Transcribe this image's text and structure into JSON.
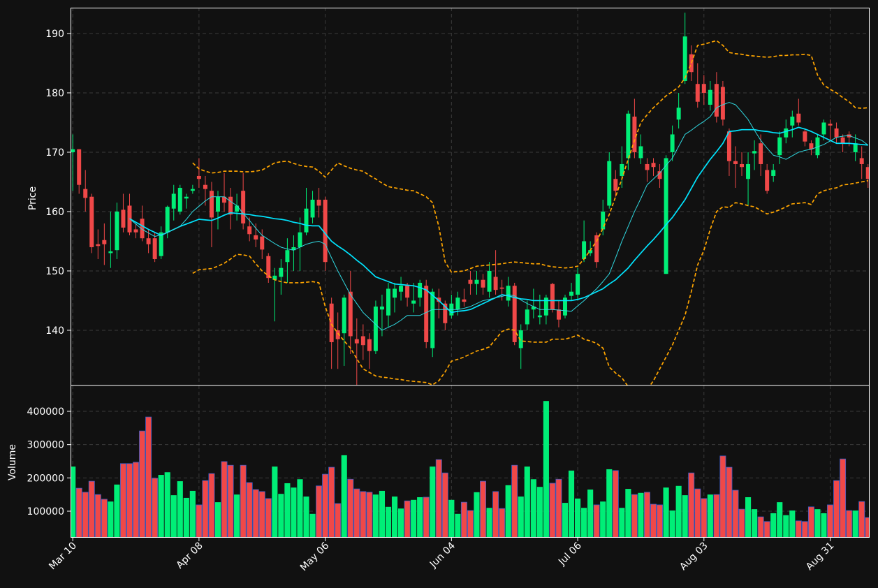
{
  "chart_data": {
    "type": "candlestick",
    "ylabel": "Price",
    "xlim": [
      -0.35,
      126.25
    ],
    "xticks": [
      {
        "value": 0,
        "label": "Mar 10"
      },
      {
        "value": 20,
        "label": "Apr 08"
      },
      {
        "value": 40,
        "label": "May 06"
      },
      {
        "value": 60,
        "label": "Jun 04"
      },
      {
        "value": 80,
        "label": "Jul 06"
      },
      {
        "value": 100,
        "label": "Aug 03"
      },
      {
        "value": 120,
        "label": "Aug 31"
      }
    ],
    "ylim": [
      130.7,
      194.35
    ],
    "yticks": [
      140,
      150,
      160,
      170,
      180,
      190
    ],
    "grid": true,
    "up_color": "#00ee77",
    "down_color": "#f04848",
    "open": [
      170,
      170.5,
      163.8,
      162.5,
      154.5,
      155.2,
      153,
      153.5,
      160.3,
      161,
      157,
      158.8,
      155.5,
      155.5,
      152.5,
      156.5,
      160.5,
      160,
      162.2,
      163.5,
      166,
      164.5,
      163.5,
      160,
      162.5,
      162.5,
      160,
      163.5,
      157.5,
      156,
      155.8,
      152.5,
      148.5,
      149,
      151.5,
      153.5,
      154,
      156.5,
      159,
      162,
      162,
      144.5,
      140,
      139.5,
      146.5,
      138.5,
      139,
      138.5,
      136.5,
      143.5,
      142.5,
      145.5,
      146.5,
      147.5,
      144.5,
      145.5,
      147.5,
      137,
      145.5,
      144.5,
      142.5,
      143.5,
      145.2,
      148.5,
      147.8,
      148.5,
      146.5,
      149,
      147.2,
      145,
      147.5,
      137,
      141,
      143.5,
      142.2,
      142.5,
      147.8,
      143.5,
      142.5,
      145.8,
      146,
      152,
      153,
      156,
      157,
      161,
      165.5,
      166,
      169,
      176,
      169,
      168,
      168.2,
      166.8,
      149.5,
      170,
      175.5,
      182,
      186.5,
      181.5,
      181.5,
      178,
      181.5,
      181,
      173.5,
      168.5,
      168,
      165.5,
      169.8,
      171.5,
      167,
      166,
      169.5,
      172.5,
      174.5,
      176.5,
      173.5,
      171.5,
      169.5,
      173,
      174.8,
      174,
      172.5,
      173,
      170,
      169,
      167.5
    ],
    "high": [
      173,
      170.5,
      167,
      163,
      157,
      158,
      160,
      161.5,
      163,
      163,
      158,
      161,
      157,
      156.5,
      157.5,
      161,
      164.5,
      164.5,
      163,
      164.5,
      169,
      166,
      165,
      163.5,
      166.5,
      164,
      163,
      166.5,
      159,
      158,
      157,
      153,
      150.5,
      152,
      155.5,
      156,
      159,
      164,
      163.5,
      164,
      162.5,
      145.5,
      143,
      146,
      150,
      142,
      141,
      139.5,
      145,
      146,
      148,
      148,
      149,
      148,
      148,
      148.5,
      148.5,
      147,
      147,
      145,
      146,
      146.5,
      147,
      150,
      150,
      149.5,
      151.5,
      153.5,
      148.5,
      149,
      148,
      141,
      145,
      147,
      146,
      146,
      148,
      145,
      146,
      148,
      150.5,
      158.5,
      155,
      156.5,
      162,
      170,
      167,
      171,
      177,
      179,
      173,
      169,
      169,
      168,
      169.5,
      174.5,
      180,
      193.5,
      188,
      185,
      183,
      182,
      183.5,
      182,
      174,
      171,
      170,
      170,
      172,
      173,
      168,
      168,
      173.5,
      175.5,
      177,
      179,
      174,
      172,
      173,
      175.5,
      175.5,
      175,
      173,
      173.5,
      173,
      171,
      168
    ],
    "low": [
      163.5,
      163,
      160,
      153,
      152,
      151,
      150.5,
      152,
      156.5,
      156,
      155.5,
      155,
      153,
      151.5,
      152,
      155.5,
      158.5,
      159.5,
      160.5,
      163,
      164,
      161,
      154,
      157,
      160,
      157,
      158.5,
      157,
      155,
      154,
      152,
      148,
      141.5,
      146,
      148,
      150,
      150,
      156,
      158,
      159,
      150,
      133.5,
      133.5,
      134,
      136,
      130.8,
      135,
      133.5,
      136,
      139,
      140.5,
      143,
      145,
      144,
      143,
      144,
      137,
      135.5,
      142,
      140,
      142,
      142.5,
      144,
      146,
      146,
      146,
      145.5,
      146,
      145,
      144,
      137.5,
      133.5,
      140,
      142,
      141,
      141,
      143,
      140.5,
      142,
      145,
      145,
      151.5,
      152.5,
      150.5,
      156,
      160.5,
      162.5,
      164,
      167,
      169,
      168,
      165,
      166,
      164,
      149.5,
      168.5,
      174,
      181.5,
      182,
      177.5,
      178,
      177,
      175,
      174.5,
      166,
      164,
      166,
      161,
      167,
      166,
      163,
      165,
      168,
      171.5,
      172.5,
      174.5,
      171,
      169.5,
      169,
      172,
      172,
      171.5,
      170,
      171,
      168.5,
      165.5,
      164
    ],
    "close": [
      170.5,
      164.5,
      162.3,
      154,
      154.2,
      154.5,
      153.3,
      160,
      157.3,
      156.5,
      156.5,
      155.5,
      154.5,
      152,
      156.5,
      160.8,
      163,
      164,
      162.5,
      163.8,
      165.5,
      163.8,
      159,
      162.5,
      161.5,
      159.5,
      161,
      158,
      156.2,
      155.3,
      153.6,
      148.8,
      149.2,
      150.5,
      153.5,
      154,
      156.5,
      160.5,
      162,
      161,
      151.5,
      138,
      138.5,
      145.5,
      139,
      137.8,
      137.5,
      136.5,
      144,
      144,
      147,
      147,
      147.5,
      145.5,
      145,
      148,
      138,
      146.5,
      144.8,
      141.2,
      144.5,
      145.5,
      144.8,
      147.8,
      148.5,
      147.2,
      150,
      146.8,
      147,
      147.5,
      138,
      140,
      143.5,
      144,
      142.5,
      145.5,
      143.5,
      141.8,
      145.5,
      146.5,
      149.5,
      155,
      153.5,
      151.5,
      160,
      168.5,
      163.5,
      168,
      176.5,
      170,
      171,
      167,
      167.5,
      165.5,
      169,
      173,
      177.5,
      189.5,
      183.5,
      178.5,
      180,
      180.5,
      176,
      175.5,
      168.5,
      168,
      167.5,
      168,
      170.2,
      168,
      163.5,
      167,
      172.5,
      174,
      176,
      175,
      171.8,
      170.5,
      172.5,
      175,
      174.5,
      172.5,
      171.5,
      172.5,
      171.5,
      168,
      165.5
    ],
    "series": [
      {
        "color": "#00e5ff",
        "style": "solid",
        "values": [
          null,
          null,
          null,
          null,
          null,
          null,
          null,
          null,
          null,
          158.8,
          158.2,
          157.6,
          157,
          156.5,
          156,
          156.5,
          157,
          157.5,
          157.9,
          158.3,
          158.7,
          158.6,
          158.5,
          158.9,
          159.4,
          159.8,
          159.7,
          159.6,
          159.5,
          159.3,
          159.2,
          159,
          158.8,
          158.7,
          158.5,
          158.2,
          158,
          157.7,
          157.6,
          157.6,
          156.3,
          155,
          154.2,
          153.5,
          152.7,
          151.8,
          151,
          150,
          149,
          148.6,
          148.2,
          147.8,
          147.7,
          147.6,
          147.5,
          147.2,
          146.8,
          145.9,
          145,
          144,
          143,
          143.2,
          143.3,
          143.5,
          144,
          144.5,
          145,
          145.5,
          146,
          145.8,
          145.5,
          145.3,
          145.2,
          145,
          145,
          145,
          145,
          145,
          145,
          145,
          145.2,
          145.5,
          146,
          146.5,
          147,
          147.8,
          148.5,
          149.5,
          150.5,
          151.8,
          153,
          154.2,
          155.3,
          156.5,
          157.8,
          159,
          160.5,
          162,
          163.9,
          165.8,
          167.3,
          168.8,
          170.1,
          171.5,
          173.5,
          173.6,
          173.8,
          173.8,
          173.8,
          173.6,
          173.5,
          173.3,
          173.2,
          173.5,
          173.8,
          174.2,
          173.9,
          173.5,
          173,
          172.5,
          172,
          171.5,
          171.5,
          171.5,
          171.4,
          171.3,
          171.2
        ]
      },
      {
        "color": "#30d8e0",
        "style": "thin",
        "values": [
          null,
          null,
          null,
          null,
          null,
          null,
          null,
          null,
          null,
          158.8,
          157.9,
          157,
          156.4,
          155.8,
          156.1,
          156.5,
          157,
          157.5,
          158.7,
          160,
          160.9,
          161.8,
          162.5,
          162.5,
          162.5,
          161.7,
          161,
          159.7,
          158.5,
          157.2,
          156,
          155.3,
          154.6,
          154,
          153.7,
          153.5,
          154,
          154.5,
          154.8,
          155,
          154.5,
          152.2,
          150,
          148,
          146,
          144.5,
          143,
          142,
          141,
          140,
          140.5,
          141,
          141.7,
          142.5,
          142.5,
          142.5,
          143,
          143.5,
          143.5,
          143.5,
          143.5,
          143.5,
          143.7,
          144,
          144.5,
          145,
          145.2,
          145.5,
          145.7,
          146,
          145.8,
          145.1,
          144.5,
          144,
          143.5,
          143.5,
          143.5,
          143.4,
          143.3,
          143.2,
          144.1,
          145,
          146,
          147,
          148.2,
          149.5,
          152.2,
          155,
          157.5,
          160,
          162.2,
          164.5,
          165.5,
          166.5,
          167.8,
          169,
          171,
          173,
          173.7,
          174.5,
          175.2,
          176,
          177.5,
          178,
          178.4,
          178,
          176.8,
          175.5,
          173.7,
          172,
          170.7,
          169.5,
          169.2,
          168.8,
          169.4,
          170,
          170.3,
          170.5,
          170.9,
          171.3,
          171.9,
          172.5,
          172.7,
          172.8,
          172.4,
          172,
          171.2
        ]
      },
      {
        "color": "#ffa500",
        "style": "dashed",
        "values": [
          null,
          null,
          null,
          null,
          null,
          null,
          null,
          null,
          null,
          null,
          null,
          null,
          null,
          null,
          null,
          null,
          null,
          null,
          null,
          168.2,
          167.2,
          166.8,
          166.5,
          166.6,
          166.8,
          166.8,
          166.8,
          166.7,
          166.7,
          166.8,
          167,
          167.6,
          168.2,
          168.4,
          168.5,
          168.1,
          167.8,
          167.6,
          167.5,
          166.8,
          165.8,
          167,
          168.2,
          167.7,
          167.3,
          167,
          166.8,
          166.1,
          165.5,
          164.8,
          164.2,
          164,
          163.8,
          163.6,
          163.5,
          163,
          162.5,
          161.5,
          157.5,
          151.5,
          149.8,
          149.9,
          150,
          150.4,
          150.8,
          150.9,
          151,
          151.1,
          151.2,
          151.4,
          151.5,
          151.4,
          151.3,
          151.2,
          151.2,
          150.9,
          150.7,
          150.6,
          150.5,
          150.6,
          150.8,
          152,
          153.5,
          155,
          157.2,
          159.5,
          162.5,
          165.5,
          168.8,
          172,
          175,
          176.3,
          177.5,
          178.5,
          179.5,
          180.2,
          181,
          182.5,
          185,
          188,
          188.2,
          188.5,
          188.8,
          188,
          186.8,
          186.6,
          186.5,
          186.3,
          186.2,
          186.1,
          186,
          186.1,
          186.3,
          186.3,
          186.4,
          186.4,
          186.5,
          186.3,
          183,
          181.3,
          180.6,
          180,
          179.2,
          178.5,
          177.5,
          177.4,
          177.5
        ]
      },
      {
        "color": "#ffa500",
        "style": "dashed",
        "values": [
          null,
          null,
          null,
          null,
          null,
          null,
          null,
          null,
          null,
          null,
          null,
          null,
          null,
          null,
          null,
          null,
          null,
          null,
          null,
          149.6,
          150.2,
          150.3,
          150.4,
          150.8,
          151.3,
          152,
          152.8,
          152.7,
          152.5,
          151.2,
          150,
          149.2,
          148.5,
          148.2,
          148,
          148,
          148,
          148.1,
          148.2,
          148,
          144,
          141,
          139.5,
          138.2,
          137,
          135.2,
          133.5,
          132.9,
          132.3,
          132.1,
          132,
          131.8,
          131.7,
          131.5,
          131.4,
          131.3,
          131.2,
          130.8,
          131.5,
          133,
          134.8,
          135.1,
          135.5,
          136,
          136.5,
          136.8,
          137.2,
          138.5,
          139.8,
          140.2,
          140,
          138.2,
          138.1,
          138,
          138,
          138,
          138.5,
          138.5,
          138.5,
          138.8,
          139.2,
          138.5,
          138.2,
          137.8,
          137,
          133.8,
          132.8,
          132,
          130.5,
          129.5,
          128.5,
          130,
          131.5,
          133.5,
          135.5,
          137.5,
          140,
          142.5,
          146.5,
          151,
          153.5,
          157,
          160,
          160.8,
          160.7,
          161.5,
          161.3,
          161,
          160.8,
          160.2,
          159.6,
          159.9,
          160.3,
          160.8,
          161.3,
          161.4,
          161.5,
          161.2,
          163,
          163.5,
          163.8,
          164,
          164.5,
          164.6,
          164.8,
          165,
          165.2
        ]
      }
    ],
    "volume": {
      "ylabel": "Volume",
      "ylim": [
        20300,
        477600
      ],
      "yticks": [
        100000,
        200000,
        300000,
        400000
      ],
      "values": [
        234000,
        169000,
        157000,
        190000,
        150000,
        136000,
        129000,
        180000,
        243000,
        243000,
        247000,
        341000,
        383000,
        199000,
        209000,
        217000,
        148000,
        190000,
        140000,
        161000,
        119000,
        192000,
        213000,
        127000,
        249000,
        238000,
        150000,
        238000,
        186000,
        165000,
        159000,
        138000,
        234000,
        152000,
        184000,
        171000,
        196000,
        144000,
        92000,
        176000,
        211000,
        232000,
        123000,
        268000,
        196000,
        167000,
        159000,
        157000,
        150000,
        161000,
        113000,
        144000,
        108000,
        131000,
        134000,
        142000,
        142000,
        234000,
        255000,
        215000,
        134000,
        92000,
        127000,
        102000,
        157000,
        190000,
        110000,
        159000,
        108000,
        178000,
        238000,
        144000,
        234000,
        196000,
        173000,
        431000,
        184000,
        196000,
        125000,
        222000,
        138000,
        110000,
        165000,
        119000,
        129000,
        226000,
        222000,
        110000,
        167000,
        150000,
        155000,
        157000,
        121000,
        119000,
        171000,
        102000,
        176000,
        148000,
        215000,
        167000,
        138000,
        150000,
        150000,
        266000,
        232000,
        163000,
        106000,
        142000,
        106000,
        83000,
        69000,
        94000,
        127000,
        88000,
        102000,
        71000,
        69000,
        113000,
        106000,
        94000,
        119000,
        192000,
        257000,
        102000,
        102000,
        129000,
        81000
      ]
    }
  }
}
